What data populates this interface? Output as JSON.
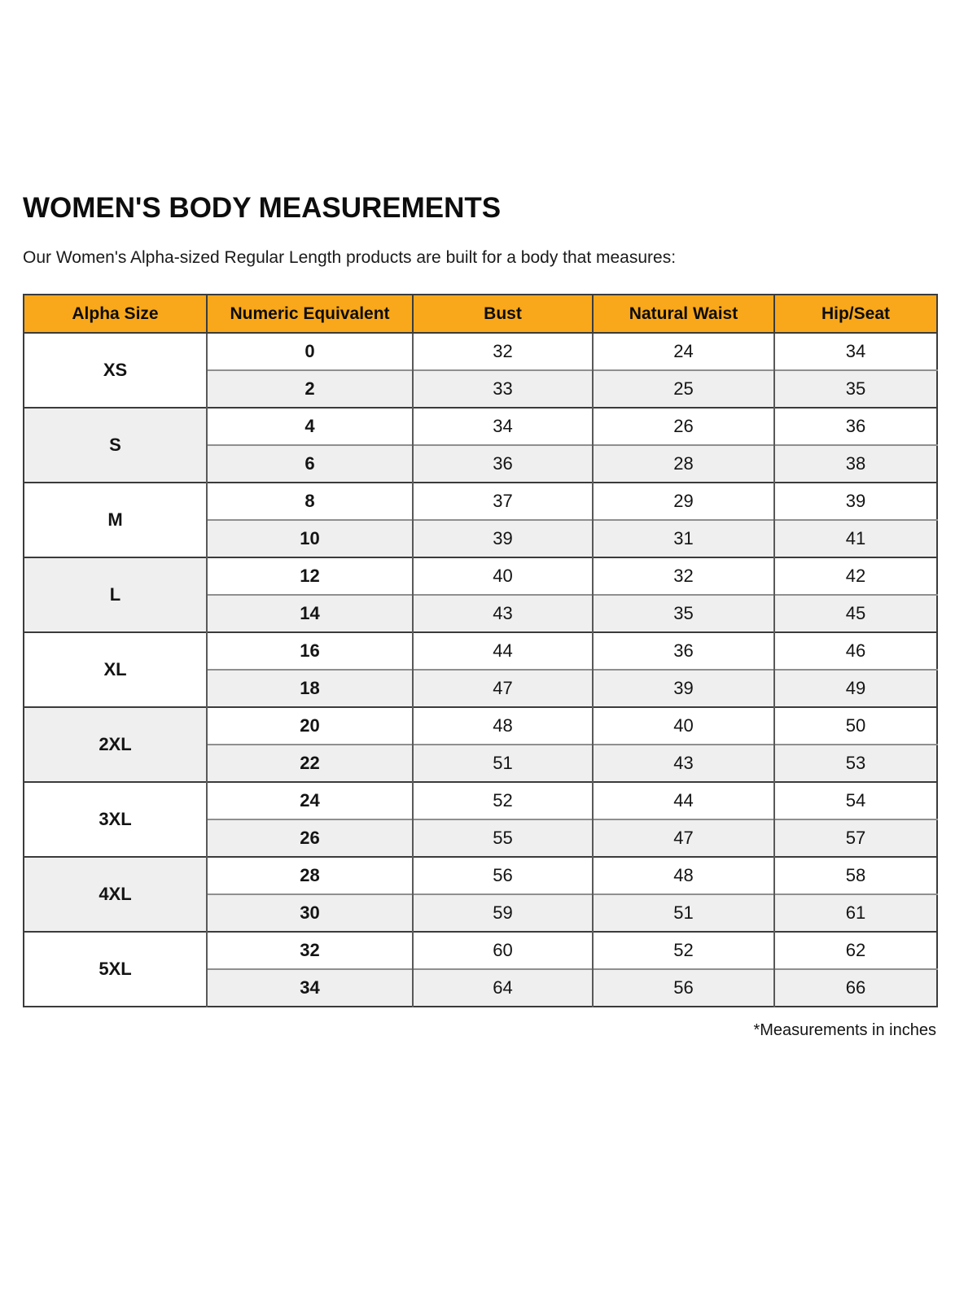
{
  "page": {
    "title": "WOMEN'S BODY MEASUREMENTS",
    "subtitle": "Our Women's Alpha-sized Regular Length products are built for a body that measures:",
    "footnote": "*Measurements in inches"
  },
  "colors": {
    "header_bg": "#F9A81B",
    "alt_row_bg": "#EFEFEF",
    "border_strong": "#3B3B3B",
    "border_column": "#595959",
    "border_subrow": "#8F8F8F",
    "text": "#111111"
  },
  "chart_data": {
    "type": "table",
    "units": "inches",
    "columns": [
      "Alpha Size",
      "Numeric Equivalent",
      "Bust",
      "Natural Waist",
      "Hip/Seat"
    ],
    "groups": [
      {
        "alpha": "XS",
        "rows": [
          [
            "0",
            "32",
            "24",
            "34"
          ],
          [
            "2",
            "33",
            "25",
            "35"
          ]
        ]
      },
      {
        "alpha": "S",
        "rows": [
          [
            "4",
            "34",
            "26",
            "36"
          ],
          [
            "6",
            "36",
            "28",
            "38"
          ]
        ]
      },
      {
        "alpha": "M",
        "rows": [
          [
            "8",
            "37",
            "29",
            "39"
          ],
          [
            "10",
            "39",
            "31",
            "41"
          ]
        ]
      },
      {
        "alpha": "L",
        "rows": [
          [
            "12",
            "40",
            "32",
            "42"
          ],
          [
            "14",
            "43",
            "35",
            "45"
          ]
        ]
      },
      {
        "alpha": "XL",
        "rows": [
          [
            "16",
            "44",
            "36",
            "46"
          ],
          [
            "18",
            "47",
            "39",
            "49"
          ]
        ]
      },
      {
        "alpha": "2XL",
        "rows": [
          [
            "20",
            "48",
            "40",
            "50"
          ],
          [
            "22",
            "51",
            "43",
            "53"
          ]
        ]
      },
      {
        "alpha": "3XL",
        "rows": [
          [
            "24",
            "52",
            "44",
            "54"
          ],
          [
            "26",
            "55",
            "47",
            "57"
          ]
        ]
      },
      {
        "alpha": "4XL",
        "rows": [
          [
            "28",
            "56",
            "48",
            "58"
          ],
          [
            "30",
            "59",
            "51",
            "61"
          ]
        ]
      },
      {
        "alpha": "5XL",
        "rows": [
          [
            "32",
            "60",
            "52",
            "62"
          ],
          [
            "34",
            "64",
            "56",
            "66"
          ]
        ]
      }
    ]
  }
}
